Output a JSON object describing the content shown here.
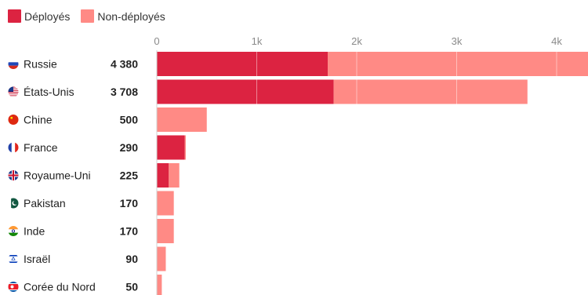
{
  "legend": {
    "deployed_label": "Déployés",
    "non_deployed_label": "Non-déployés",
    "deployed_color": "#dc2341",
    "non_deployed_color": "#ff8a85"
  },
  "chart_data": {
    "type": "bar",
    "orientation": "horizontal",
    "stacked": true,
    "categories": [
      "Russie",
      "États-Unis",
      "Chine",
      "France",
      "Royaume-Uni",
      "Pakistan",
      "Inde",
      "Israël",
      "Corée du Nord"
    ],
    "flag_icons": [
      "flag-russia-icon",
      "flag-usa-icon",
      "flag-china-icon",
      "flag-france-icon",
      "flag-uk-icon",
      "flag-pakistan-icon",
      "flag-india-icon",
      "flag-israel-icon",
      "flag-north-korea-icon"
    ],
    "totals_labels": [
      "4 380",
      "3 708",
      "500",
      "290",
      "225",
      "170",
      "170",
      "90",
      "50"
    ],
    "series": [
      {
        "name": "Déployés",
        "values": [
          1710,
          1770,
          0,
          280,
          120,
          0,
          0,
          0,
          0
        ]
      },
      {
        "name": "Non-déployés",
        "values": [
          2670,
          1938,
          500,
          10,
          105,
          170,
          170,
          90,
          50
        ]
      }
    ],
    "x_ticks": [
      0,
      1000,
      2000,
      3000,
      4000
    ],
    "x_tick_labels": [
      "0",
      "1k",
      "2k",
      "3k",
      "4k"
    ],
    "xlim": [
      0,
      4300
    ],
    "grid": true,
    "legend_position": "top-left"
  }
}
